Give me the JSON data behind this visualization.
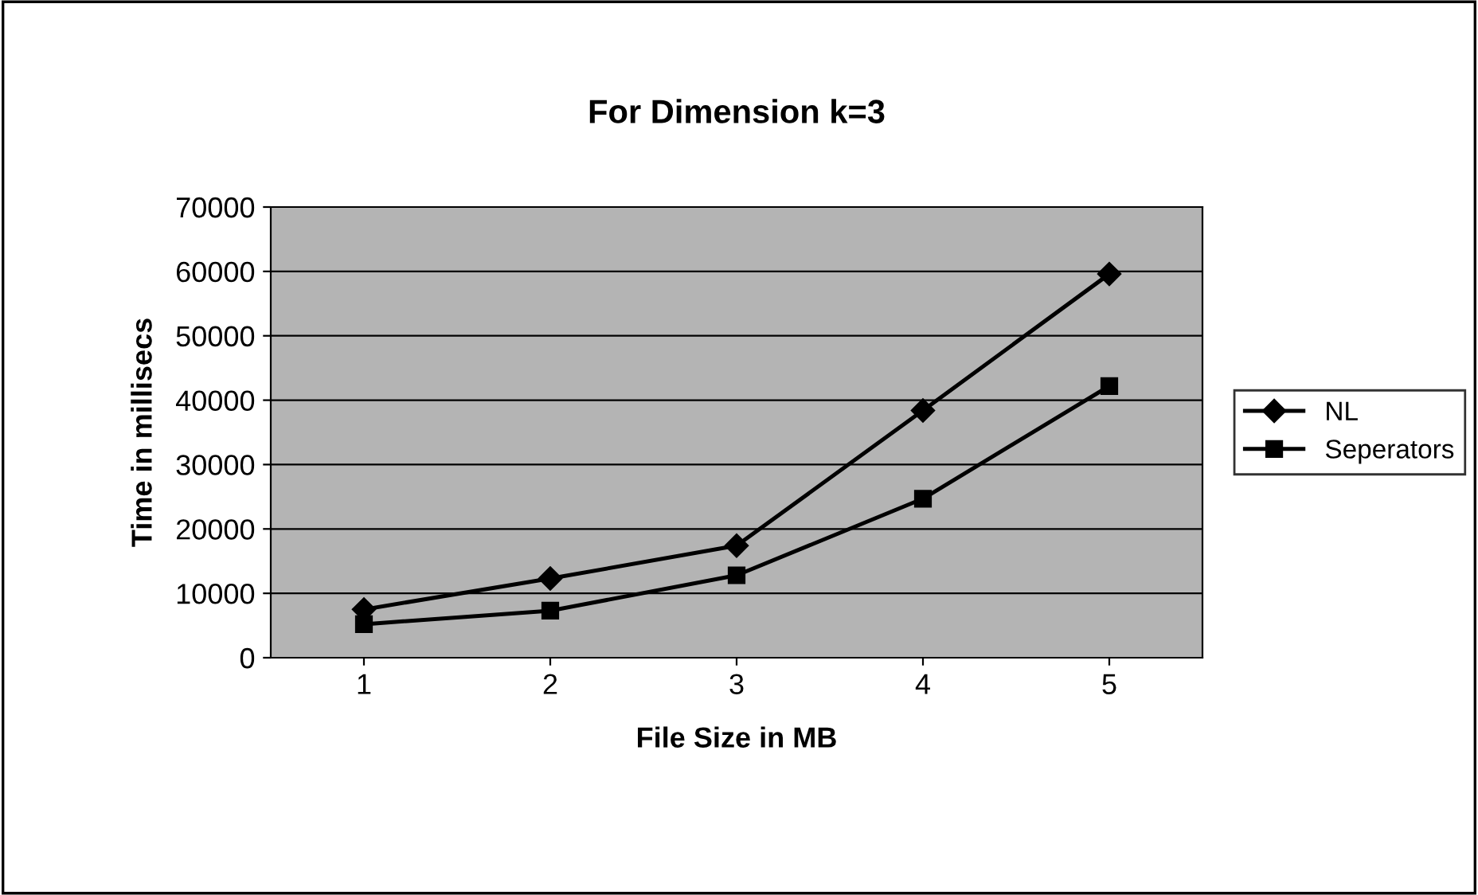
{
  "chart_data": {
    "type": "line",
    "title": "For Dimension k=3",
    "xlabel": "File Size in MB",
    "ylabel": "Time in millisecs",
    "categories": [
      "1",
      "2",
      "3",
      "4",
      "5"
    ],
    "series": [
      {
        "name": "NL",
        "color": "#000000",
        "marker": "diamond",
        "values": [
          7500,
          12300,
          17400,
          38400,
          59600
        ]
      },
      {
        "name": "Seperators",
        "color": "#000000",
        "marker": "square",
        "values": [
          5200,
          7300,
          12800,
          24700,
          42200
        ]
      }
    ],
    "ylim": [
      0,
      70000
    ],
    "yticks": [
      0,
      10000,
      20000,
      30000,
      40000,
      50000,
      60000,
      70000
    ],
    "grid": "y",
    "legend": "right",
    "line_style": "solid"
  }
}
